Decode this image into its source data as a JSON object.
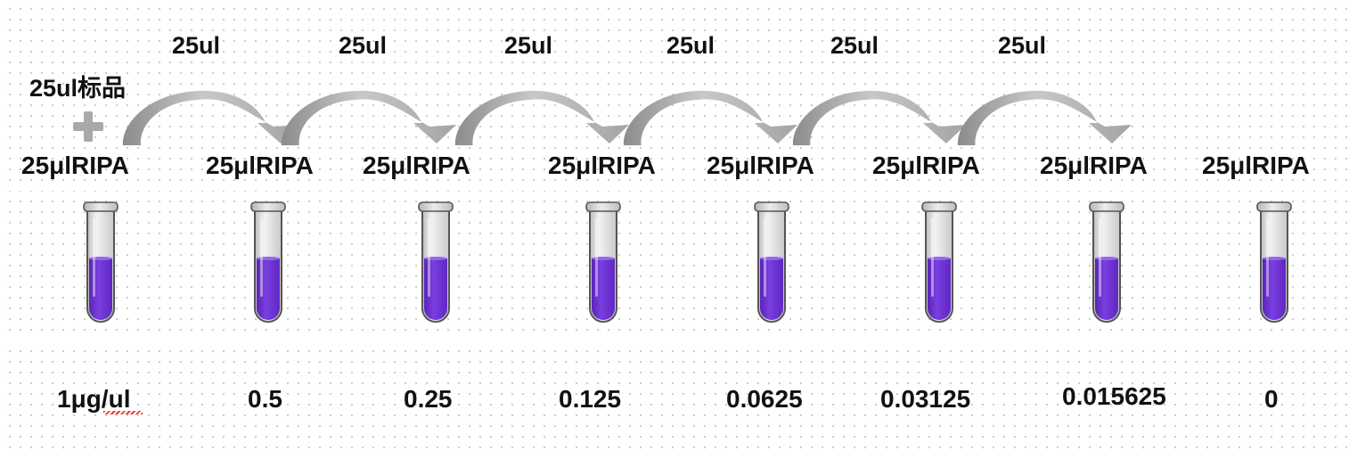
{
  "standard_label": "25ul标品",
  "transfer_labels": [
    "25ul",
    "25ul",
    "25ul",
    "25ul",
    "25ul",
    "25ul"
  ],
  "buffer_labels": [
    "25μlRIPA",
    "25μlRIPA",
    "25μlRIPA",
    "25μlRIPA",
    "25μlRIPA",
    "25μlRIPA",
    "25μlRIPA",
    "25μlRIPA"
  ],
  "concentrations": [
    "1μg/ul",
    "0.5",
    "0.25",
    "0.125",
    "0.0625",
    "0.03125",
    "0.015625",
    "0"
  ],
  "icons": {
    "plus": "plus-icon",
    "arrow": "curved-arrow-icon",
    "tube": "test-tube-icon"
  },
  "colors": {
    "liquid": "#7a3fe0",
    "liquid_dark": "#5a22b8",
    "glass": "#e6e6e6",
    "cap": "#d2d2d2",
    "arrow_light": "#c8c8c8",
    "arrow_dark": "#8c8c8c",
    "plus": "#a9a9a9"
  }
}
